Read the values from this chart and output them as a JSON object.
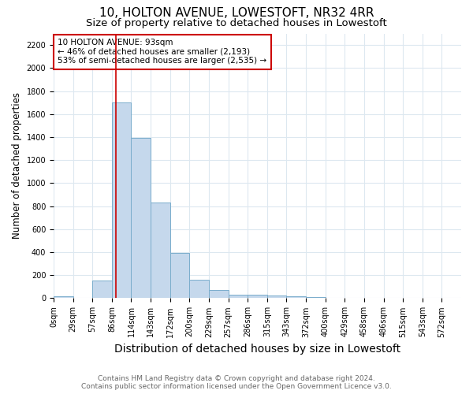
{
  "title": "10, HOLTON AVENUE, LOWESTOFT, NR32 4RR",
  "subtitle": "Size of property relative to detached houses in Lowestoft",
  "xlabel": "Distribution of detached houses by size in Lowestoft",
  "ylabel": "Number of detached properties",
  "footer_line1": "Contains HM Land Registry data © Crown copyright and database right 2024.",
  "footer_line2": "Contains public sector information licensed under the Open Government Licence v3.0.",
  "bin_labels": [
    "0sqm",
    "29sqm",
    "57sqm",
    "86sqm",
    "114sqm",
    "143sqm",
    "172sqm",
    "200sqm",
    "229sqm",
    "257sqm",
    "286sqm",
    "315sqm",
    "343sqm",
    "372sqm",
    "400sqm",
    "429sqm",
    "458sqm",
    "486sqm",
    "515sqm",
    "543sqm",
    "572sqm"
  ],
  "bar_heights": [
    20,
    0,
    155,
    1700,
    1390,
    830,
    390,
    160,
    70,
    30,
    30,
    25,
    15,
    10,
    0,
    0,
    0,
    0,
    0,
    0,
    0
  ],
  "bar_color": "#c5d8ec",
  "bar_edgecolor": "#7aadcc",
  "grid_color": "#dde8f0",
  "vline_x_bin": 3.2,
  "vline_color": "#cc0000",
  "annotation_text_line1": "10 HOLTON AVENUE: 93sqm",
  "annotation_text_line2": "← 46% of detached houses are smaller (2,193)",
  "annotation_text_line3": "53% of semi-detached houses are larger (2,535) →",
  "annotation_box_color": "#ffffff",
  "annotation_box_edgecolor": "#cc0000",
  "ylim": [
    0,
    2300
  ],
  "yticks": [
    0,
    200,
    400,
    600,
    800,
    1000,
    1200,
    1400,
    1600,
    1800,
    2000,
    2200
  ],
  "title_fontsize": 11,
  "subtitle_fontsize": 9.5,
  "xlabel_fontsize": 10,
  "ylabel_fontsize": 8.5,
  "tick_fontsize": 7,
  "annotation_fontsize": 7.5,
  "footer_fontsize": 6.5
}
